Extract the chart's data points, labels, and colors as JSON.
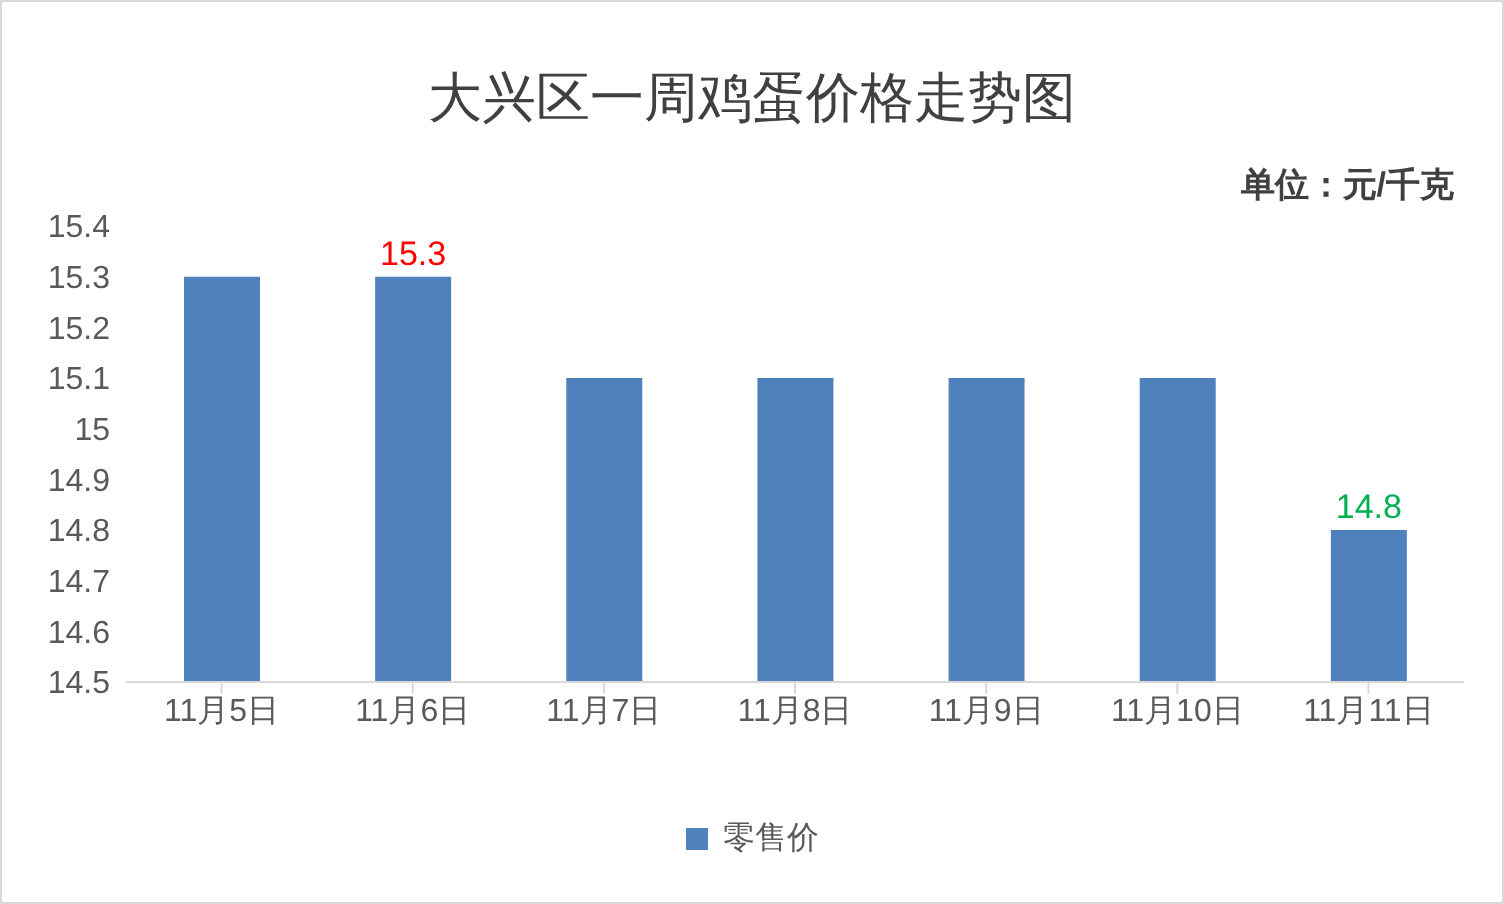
{
  "chart_data": {
    "type": "bar",
    "title": "大兴区一周鸡蛋价格走势图",
    "subtitle": "单位：元/千克",
    "categories": [
      "11月5日",
      "11月6日",
      "11月7日",
      "11月8日",
      "11月9日",
      "11月10日",
      "11月11日"
    ],
    "series": [
      {
        "name": "零售价",
        "color": "#4f81bd",
        "values": [
          15.3,
          15.3,
          15.1,
          15.1,
          15.1,
          15.1,
          14.8
        ],
        "value_labels": [
          null,
          "15.3",
          null,
          null,
          null,
          null,
          "14.8"
        ]
      }
    ],
    "ylim": [
      14.5,
      15.4
    ],
    "yticks": [
      14.5,
      14.6,
      14.7,
      14.8,
      14.9,
      15,
      15.1,
      15.2,
      15.3,
      15.4
    ],
    "grid": false,
    "legend": "bottom"
  }
}
